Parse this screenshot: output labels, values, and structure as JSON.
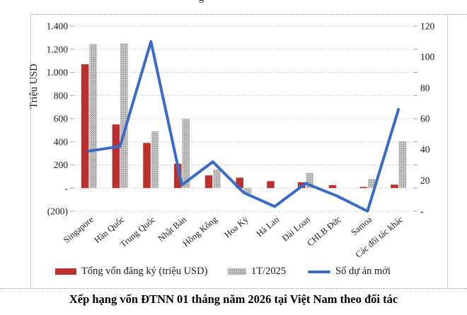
{
  "page": {
    "clipped_title_fragment": "g"
  },
  "caption": "Xếp hạng vốn ĐTNN 01 tháng năm 2026 tại Việt Nam theo đối tác",
  "chart_data": {
    "type": "bar",
    "subtype": "combo bar+line, dual axis",
    "title": "",
    "categories": [
      "Singapore",
      "Hàn Quốc",
      "Trung Quốc",
      "Nhật Bản",
      "Hồng Kông",
      "Hoa Kỳ",
      "Hà Lan",
      "Đài Loan",
      "CHLB Đức",
      "Samoa",
      "Các đối tác khác"
    ],
    "series": [
      {
        "name": "Tổng vốn đăng ký (triệu USD)",
        "type": "bar",
        "axis": "left",
        "color": "#c23431",
        "values": [
          1070,
          550,
          390,
          210,
          110,
          90,
          60,
          50,
          25,
          10,
          30
        ]
      },
      {
        "name": "1T/2025",
        "type": "bar",
        "axis": "left",
        "color": "#aeaeae",
        "values": [
          1245,
          1250,
          490,
          600,
          160,
          -45,
          0,
          130,
          0,
          80,
          405
        ]
      },
      {
        "name": "Số dự án mới",
        "type": "line",
        "axis": "right",
        "color": "#3a6bc9",
        "values": [
          39,
          42,
          110,
          17,
          32,
          12,
          3,
          18,
          10,
          0,
          66
        ]
      }
    ],
    "y_axis_left": {
      "title": "Triệu USD",
      "range": [
        -200,
        1400
      ],
      "tick_values": [
        1400,
        1200,
        1000,
        800,
        600,
        400,
        200,
        0,
        -200
      ],
      "tick_labels": [
        "1.400",
        "1.200",
        "1.000",
        "800",
        "600",
        "400",
        "200",
        "-",
        "(200)"
      ]
    },
    "y_axis_right": {
      "title": "",
      "range": [
        0,
        120
      ],
      "tick_values": [
        120,
        100,
        80,
        60,
        40,
        20,
        0
      ],
      "tick_labels": [
        "120",
        "100",
        "80",
        "60",
        "40",
        "20",
        "-"
      ]
    },
    "grid": "horizontal dotted",
    "legend_position": "bottom"
  }
}
